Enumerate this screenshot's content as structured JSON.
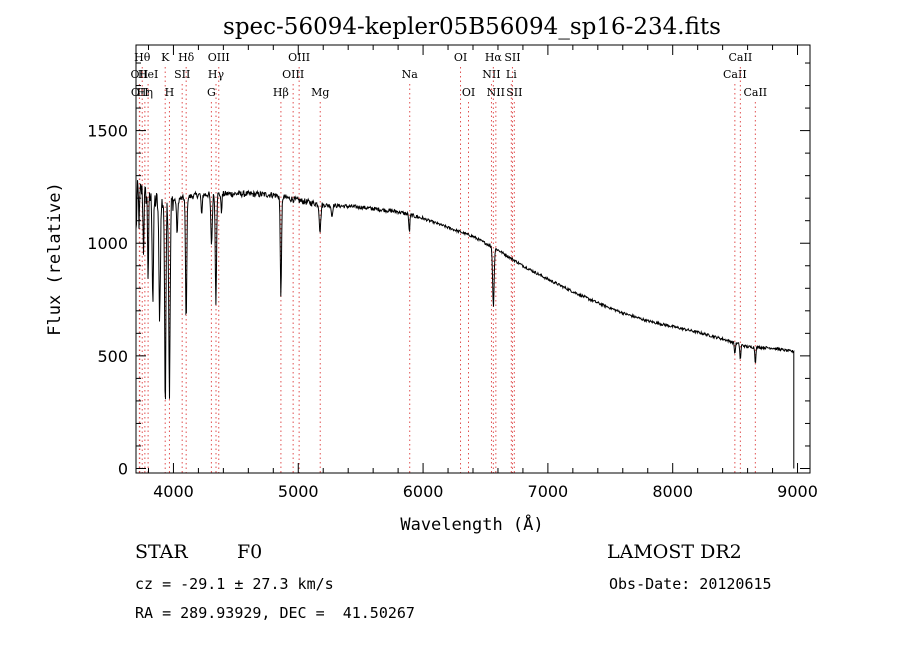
{
  "chart_data": {
    "type": "line",
    "title": "spec-56094-kepler05B56094_sp16-234.fits",
    "xlabel": "Wavelength (Å)",
    "ylabel": "Flux (relative)",
    "xlim": [
      3700,
      9100
    ],
    "ylim": [
      -20,
      1880
    ],
    "xticks": [
      4000,
      5000,
      6000,
      7000,
      8000,
      9000
    ],
    "yticks": [
      0,
      500,
      1000,
      1500
    ],
    "line_color": "#000000",
    "marker_color": "#e05050",
    "markers": [
      {
        "w": 3727,
        "label": "OII",
        "row": 1
      },
      {
        "w": 3730,
        "label": "OII",
        "row": 2
      },
      {
        "w": 3750,
        "label": "Hθ",
        "row": 0
      },
      {
        "w": 3771,
        "label": "Hη",
        "row": 2
      },
      {
        "w": 3797,
        "label": "HeI",
        "row": 1
      },
      {
        "w": 3934,
        "label": "K",
        "row": 0
      },
      {
        "w": 3968,
        "label": "H",
        "row": 2
      },
      {
        "w": 4070,
        "label": "SII",
        "row": 1
      },
      {
        "w": 4102,
        "label": "Hδ",
        "row": 0
      },
      {
        "w": 4304,
        "label": "G",
        "row": 2
      },
      {
        "w": 4341,
        "label": "Hγ",
        "row": 1
      },
      {
        "w": 4363,
        "label": "OIII",
        "row": 0
      },
      {
        "w": 4861,
        "label": "Hβ",
        "row": 2
      },
      {
        "w": 4959,
        "label": "OIII",
        "row": 1
      },
      {
        "w": 5007,
        "label": "OIII",
        "row": 0
      },
      {
        "w": 5176,
        "label": "Mg",
        "row": 2
      },
      {
        "w": 5893,
        "label": "Na",
        "row": 1
      },
      {
        "w": 6300,
        "label": "OI",
        "row": 0
      },
      {
        "w": 6364,
        "label": "OI",
        "row": 2
      },
      {
        "w": 6548,
        "label": "NII",
        "row": 1
      },
      {
        "w": 6563,
        "label": "Hα",
        "row": 0
      },
      {
        "w": 6583,
        "label": "NII",
        "row": 2
      },
      {
        "w": 6707,
        "label": "Li",
        "row": 1
      },
      {
        "w": 6716,
        "label": "SII",
        "row": 0
      },
      {
        "w": 6731,
        "label": "SII",
        "row": 2
      },
      {
        "w": 8498,
        "label": "CaII",
        "row": 1
      },
      {
        "w": 8542,
        "label": "CaII",
        "row": 0
      },
      {
        "w": 8662,
        "label": "CaII",
        "row": 2
      }
    ],
    "continuum": [
      [
        3700,
        1250
      ],
      [
        3750,
        1230
      ],
      [
        3800,
        1200
      ],
      [
        3900,
        1180
      ],
      [
        4000,
        1190
      ],
      [
        4200,
        1215
      ],
      [
        4500,
        1220
      ],
      [
        4800,
        1215
      ],
      [
        5000,
        1190
      ],
      [
        5200,
        1170
      ],
      [
        5500,
        1160
      ],
      [
        5800,
        1140
      ],
      [
        6000,
        1110
      ],
      [
        6200,
        1070
      ],
      [
        6400,
        1030
      ],
      [
        6600,
        970
      ],
      [
        6800,
        900
      ],
      [
        7000,
        840
      ],
      [
        7200,
        785
      ],
      [
        7400,
        735
      ],
      [
        7600,
        690
      ],
      [
        7800,
        655
      ],
      [
        8000,
        630
      ],
      [
        8200,
        605
      ],
      [
        8400,
        575
      ],
      [
        8600,
        540
      ],
      [
        8800,
        535
      ],
      [
        8950,
        520
      ]
    ],
    "absorption": [
      {
        "w": 3700,
        "d": 200,
        "s": 5
      },
      {
        "w": 3725,
        "d": 150,
        "s": 4
      },
      {
        "w": 3760,
        "d": 250,
        "s": 4
      },
      {
        "w": 3797,
        "d": 350,
        "s": 4
      },
      {
        "w": 3835,
        "d": 450,
        "s": 5
      },
      {
        "w": 3889,
        "d": 500,
        "s": 6
      },
      {
        "w": 3934,
        "d": 900,
        "s": 5
      },
      {
        "w": 3968,
        "d": 850,
        "s": 6
      },
      {
        "w": 4030,
        "d": 150,
        "s": 5
      },
      {
        "w": 4102,
        "d": 560,
        "s": 5
      },
      {
        "w": 4226,
        "d": 100,
        "s": 4
      },
      {
        "w": 4305,
        "d": 220,
        "s": 6
      },
      {
        "w": 4340,
        "d": 480,
        "s": 5
      },
      {
        "w": 4384,
        "d": 80,
        "s": 4
      },
      {
        "w": 4861,
        "d": 440,
        "s": 5
      },
      {
        "w": 5175,
        "d": 120,
        "s": 6
      },
      {
        "w": 5270,
        "d": 50,
        "s": 5
      },
      {
        "w": 5890,
        "d": 80,
        "s": 4
      },
      {
        "w": 6563,
        "d": 260,
        "s": 6
      },
      {
        "w": 8498,
        "d": 50,
        "s": 4
      },
      {
        "w": 8542,
        "d": 70,
        "s": 4
      },
      {
        "w": 8662,
        "d": 70,
        "s": 4
      }
    ]
  },
  "footer": {
    "object_type": "STAR",
    "subclass": "F0",
    "survey": "LAMOST DR2",
    "redshift": "cz = -29.1 ± 27.3 km/s",
    "obs_date": "Obs-Date: 20120615",
    "coords": "RA = 289.93929, DEC =  41.50267"
  }
}
